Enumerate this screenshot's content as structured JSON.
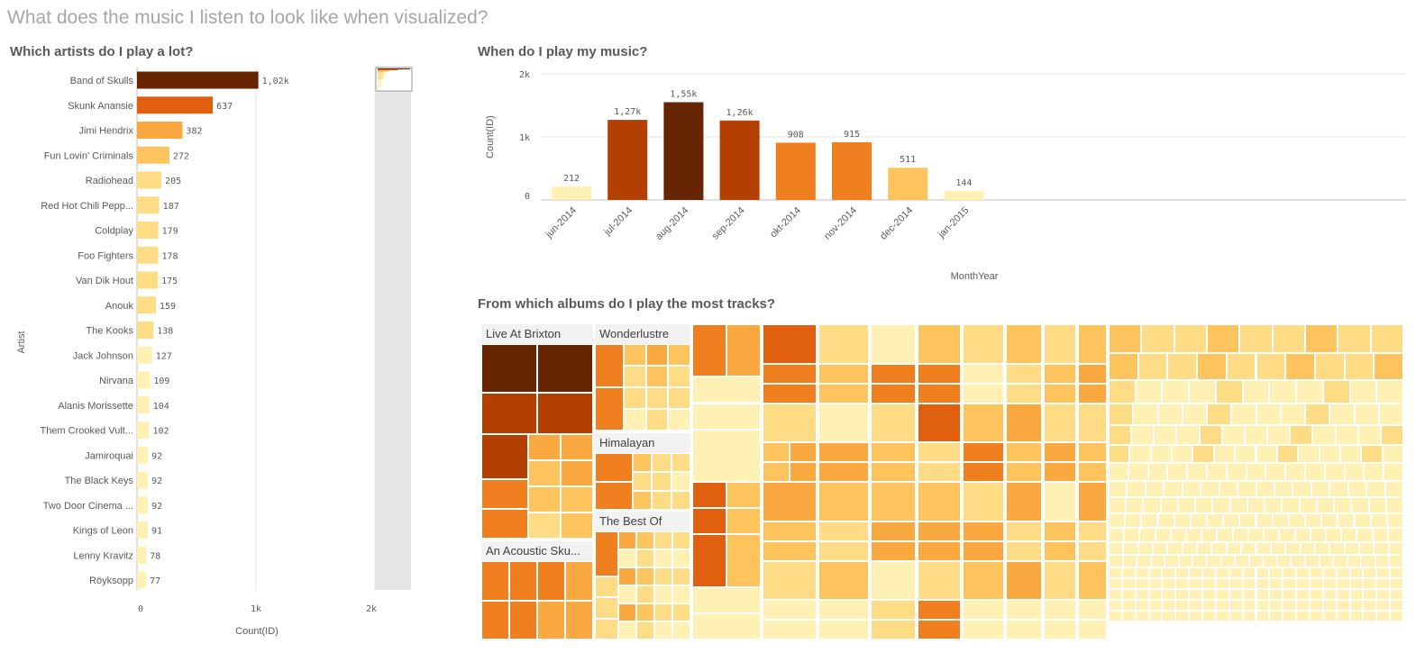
{
  "page": {
    "title": "What does the music I listen to look like when visualized?"
  },
  "colors": {
    "c1": "#662400",
    "c2": "#b33f00",
    "c3": "#e06010",
    "c4": "#f07f20",
    "c5": "#f9a940",
    "c6": "#fdc45e",
    "c7": "#fedc86",
    "c8": "#fff0b3",
    "grid": "#e6e6e6",
    "scroll_track": "#e6e6e6"
  },
  "chart_data": [
    {
      "type": "bar",
      "orientation": "horizontal",
      "title": "Which artists do I play a lot?",
      "xlabel": "Count(ID)",
      "ylabel": "Artist",
      "xlim": [
        0,
        2000
      ],
      "x_ticks": [
        "0",
        "1k",
        "2k"
      ],
      "grid": true,
      "categories": [
        "Band of Skulls",
        "Skunk Anansie",
        "Jimi Hendrix",
        "Fun Lovin' Criminals",
        "Radiohead",
        "Red Hot Chili Pepp...",
        "Coldplay",
        "Foo Fighters",
        "Van Dik Hout",
        "Anouk",
        "The Kooks",
        "Jack Johnson",
        "Nirvana",
        "Alanis Morissette",
        "Them Crooked Vult...",
        "Jamiroquai",
        "The Black Keys",
        "Two Door Cinema ...",
        "Kings of Leon",
        "Lenny Kravitz",
        "Röyksopp"
      ],
      "values": [
        1020,
        637,
        382,
        272,
        205,
        187,
        179,
        178,
        175,
        159,
        138,
        127,
        109,
        104,
        102,
        92,
        92,
        92,
        91,
        78,
        77
      ],
      "value_labels": [
        "1,02k",
        "637",
        "382",
        "272",
        "205",
        "187",
        "179",
        "178",
        "175",
        "159",
        "138",
        "127",
        "109",
        "104",
        "102",
        "92",
        "92",
        "92",
        "91",
        "78",
        "77"
      ],
      "colors": [
        "#662400",
        "#e06010",
        "#f9a940",
        "#fdc45e",
        "#fedc86",
        "#fedc86",
        "#fedc86",
        "#fedc86",
        "#fedc86",
        "#fedc86",
        "#fedc86",
        "#fff0b3",
        "#fff0b3",
        "#fff0b3",
        "#fff0b3",
        "#fff0b3",
        "#fff0b3",
        "#fff0b3",
        "#fff0b3",
        "#fff0b3",
        "#fff0b3"
      ]
    },
    {
      "type": "bar",
      "title": "When do I play my music?",
      "xlabel": "MonthYear",
      "ylabel": "Count(ID)",
      "ylim": [
        0,
        2000
      ],
      "y_ticks": [
        "0",
        "1k",
        "2k"
      ],
      "grid": true,
      "categories": [
        "jun-2014",
        "jul-2014",
        "aug-2014",
        "sep-2014",
        "okt-2014",
        "nov-2014",
        "dec-2014",
        "jan-2015"
      ],
      "values": [
        212,
        1270,
        1550,
        1260,
        908,
        915,
        511,
        144
      ],
      "value_labels": [
        "212",
        "1,27k",
        "1,55k",
        "1,26k",
        "908",
        "915",
        "511",
        "144"
      ],
      "colors": [
        "#fff0b3",
        "#b33f00",
        "#662400",
        "#b33f00",
        "#f07f20",
        "#f07f20",
        "#fdc45e",
        "#fff0b3"
      ]
    },
    {
      "type": "treemap",
      "title": "From which albums do I play the most tracks?",
      "labels": [
        "Live At Brixton",
        "Wonderlustre",
        "Himalayan",
        "The Best Of",
        "An Acoustic Sku..."
      ]
    }
  ]
}
